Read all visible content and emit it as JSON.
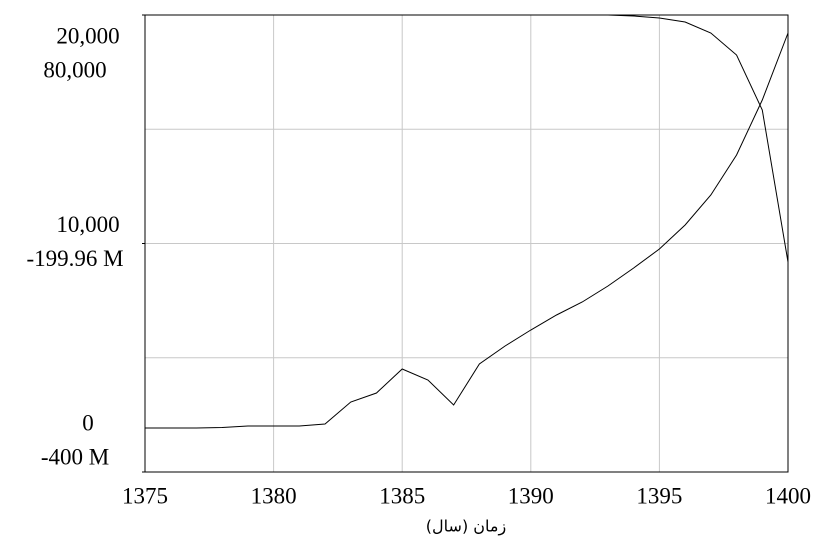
{
  "chart_data": {
    "type": "line",
    "x_label": "زمان (سال)",
    "x": [
      1375,
      1376,
      1377,
      1378,
      1379,
      1380,
      1381,
      1382,
      1383,
      1384,
      1385,
      1386,
      1387,
      1388,
      1389,
      1390,
      1391,
      1392,
      1393,
      1394,
      1395,
      1396,
      1397,
      1398,
      1399,
      1400
    ],
    "xlim": [
      1375,
      1400
    ],
    "xticks": [
      1375,
      1380,
      1385,
      1390,
      1395,
      1400
    ],
    "ylim": [
      0,
      20000
    ],
    "yticks": [
      0,
      {
        "value": 10000,
        "label": "10,000"
      },
      {
        "value": 20000,
        "label": "20,000"
      }
    ],
    "y2lim": [
      -400000000,
      80000
    ],
    "y2ticks": [
      {
        "value": -400000000,
        "label": "-400 M"
      },
      {
        "value": -199960000,
        "label": "-199.96 M"
      },
      {
        "value": 80000,
        "label": "80,000"
      }
    ],
    "grid": true,
    "series": [
      {
        "color": "#000000",
        "values": [
          1926,
          1926,
          1926,
          1950,
          2013,
          2013,
          2013,
          2100,
          3063,
          3457,
          4508,
          4026,
          2932,
          4726,
          5514,
          6214,
          6871,
          7440,
          8140,
          8928,
          9759,
          10810,
          12123,
          13873,
          16280,
          19212
        ]
      },
      {
        "color": "#000000",
        "axis": "y2",
        "values": [
          80000,
          80000,
          80000,
          80000,
          80000,
          80000,
          80000,
          80000,
          80000,
          80000,
          80000,
          80000,
          80000,
          80000,
          80000,
          80000,
          80000,
          80000,
          80000,
          -795000,
          -2550000,
          -6050000,
          -15680000,
          -34940000,
          -83090000,
          -216160000
        ]
      }
    ]
  }
}
